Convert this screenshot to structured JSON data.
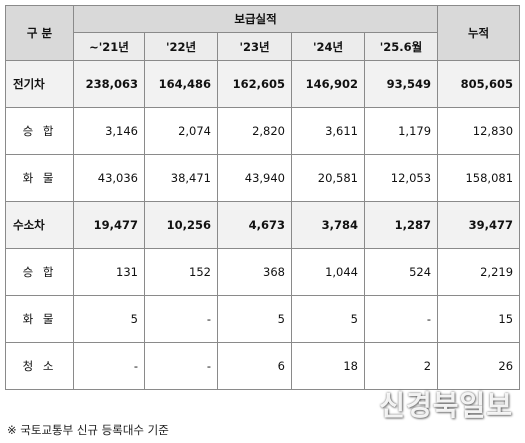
{
  "header": {
    "group_label": "구 분",
    "performance_label": "보급실적",
    "cumulative_label": "누적",
    "years": [
      "~'21년",
      "'22년",
      "'23년",
      "'24년",
      "'25.6월"
    ]
  },
  "rows": [
    {
      "label": "전기차",
      "kind": "cat",
      "values": [
        "238,063",
        "164,486",
        "162,605",
        "146,902",
        "93,549"
      ],
      "total": "805,605"
    },
    {
      "label": "승 합",
      "kind": "sub",
      "values": [
        "3,146",
        "2,074",
        "2,820",
        "3,611",
        "1,179"
      ],
      "total": "12,830"
    },
    {
      "label": "화 물",
      "kind": "sub",
      "values": [
        "43,036",
        "38,471",
        "43,940",
        "20,581",
        "12,053"
      ],
      "total": "158,081"
    },
    {
      "label": "수소차",
      "kind": "cat",
      "values": [
        "19,477",
        "10,256",
        "4,673",
        "3,784",
        "1,287"
      ],
      "total": "39,477"
    },
    {
      "label": "승 합",
      "kind": "sub",
      "values": [
        "131",
        "152",
        "368",
        "1,044",
        "524"
      ],
      "total": "2,219"
    },
    {
      "label": "화 물",
      "kind": "sub",
      "values": [
        "5",
        "-",
        "5",
        "5",
        "-"
      ],
      "total": "15"
    },
    {
      "label": "청 소",
      "kind": "sub",
      "values": [
        "-",
        "-",
        "6",
        "18",
        "2"
      ],
      "total": "26"
    }
  ],
  "footnote": "※ 국토교통부 신규 등록대수 기준",
  "watermark": "신경북일보"
}
